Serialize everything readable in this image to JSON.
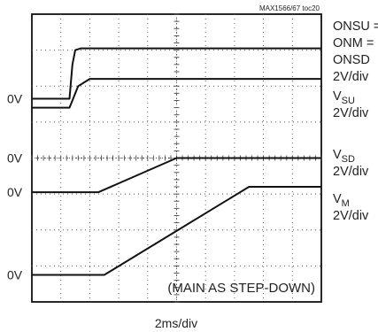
{
  "figure_id": "MAX1566/67 toc20",
  "chart_data": {
    "type": "line",
    "title": "",
    "xlabel": "2ms/div",
    "x_unit": "ms",
    "x_per_div": 2,
    "x_divisions": 10,
    "y_divisions": 8,
    "grid": true,
    "annotation": "(MAIN AS STEP-DOWN)",
    "ground_markers": [
      {
        "label": "0V",
        "level_div": 5.65
      },
      {
        "label": "0V",
        "level_div": 4.0
      },
      {
        "label": "0V",
        "level_div": 3.05
      },
      {
        "label": "0V",
        "level_div": 0.75
      }
    ],
    "series": [
      {
        "name": "ONSU = ONM = ONSD",
        "scale": "2V/div",
        "color": "#111111",
        "x": [
          0,
          2.6,
          2.8,
          3.0,
          3.4,
          20
        ],
        "y": [
          5.65,
          5.65,
          6.6,
          7.0,
          7.05,
          7.05
        ]
      },
      {
        "name": "VSU",
        "scale": "2V/div",
        "color": "#111111",
        "x": [
          0,
          2.6,
          2.8,
          3.2,
          4.0,
          20
        ],
        "y": [
          5.4,
          5.4,
          5.6,
          6.0,
          6.2,
          6.2
        ]
      },
      {
        "name": "VSD",
        "scale": "2V/div",
        "color": "#111111",
        "x": [
          0,
          4.6,
          10.0,
          20
        ],
        "y": [
          3.05,
          3.05,
          4.0,
          4.0
        ]
      },
      {
        "name": "VM",
        "scale": "2V/div",
        "color": "#111111",
        "x": [
          0,
          5.0,
          15.0,
          20
        ],
        "y": [
          0.75,
          0.75,
          3.2,
          3.2
        ]
      }
    ]
  },
  "trace_labels": [
    {
      "lines": [
        "ONSU =",
        "ONM =",
        "ONSD",
        "2V/div"
      ]
    },
    {
      "main": "V",
      "sub": "SU",
      "scale": "2V/div"
    },
    {
      "main": "V",
      "sub": "SD",
      "scale": "2V/div"
    },
    {
      "main": "V",
      "sub": "M",
      "scale": "2V/div"
    }
  ]
}
